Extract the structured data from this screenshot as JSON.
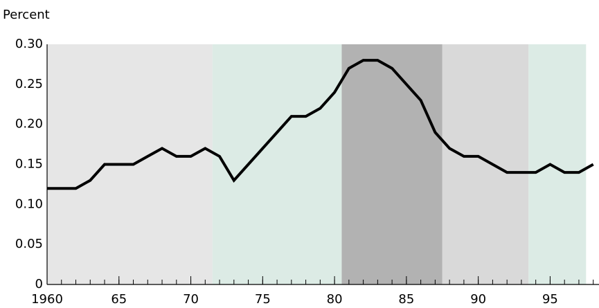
{
  "chart_data": {
    "type": "line",
    "ylabel": "Percent",
    "x": [
      1960,
      1961,
      1962,
      1963,
      1964,
      1965,
      1966,
      1967,
      1968,
      1969,
      1970,
      1971,
      1972,
      1973,
      1974,
      1975,
      1976,
      1977,
      1978,
      1979,
      1980,
      1981,
      1982,
      1983,
      1984,
      1985,
      1986,
      1987,
      1988,
      1989,
      1990,
      1991,
      1992,
      1993,
      1994,
      1995,
      1996,
      1997,
      1998
    ],
    "series": [
      {
        "color": "#000000",
        "values": [
          0.12,
          0.12,
          0.12,
          0.13,
          0.15,
          0.15,
          0.15,
          0.16,
          0.17,
          0.16,
          0.16,
          0.17,
          0.16,
          0.13,
          0.15,
          0.17,
          0.19,
          0.21,
          0.21,
          0.22,
          0.24,
          0.27,
          0.28,
          0.28,
          0.27,
          0.25,
          0.23,
          0.19,
          0.17,
          0.16,
          0.16,
          0.15,
          0.14,
          0.14,
          0.14,
          0.15,
          0.14,
          0.14,
          0.15
        ]
      }
    ],
    "bands": [
      {
        "start": 1960,
        "end": 1971.5,
        "color": "#e6e6e6"
      },
      {
        "start": 1971.5,
        "end": 1980.5,
        "color": "#dcebe5"
      },
      {
        "start": 1980.5,
        "end": 1987.5,
        "color": "#b2b2b2"
      },
      {
        "start": 1987.5,
        "end": 1993.5,
        "color": "#d9d9d9"
      },
      {
        "start": 1993.5,
        "end": 1997.5,
        "color": "#dcebe5"
      }
    ],
    "xlim": [
      1960,
      1998.4
    ],
    "xticks": [
      {
        "value": 1960,
        "label": "1960"
      },
      {
        "value": 1965,
        "label": "65"
      },
      {
        "value": 1970,
        "label": "70"
      },
      {
        "value": 1975,
        "label": "75"
      },
      {
        "value": 1980,
        "label": "80"
      },
      {
        "value": 1985,
        "label": "85"
      },
      {
        "value": 1990,
        "label": "90"
      },
      {
        "value": 1995,
        "label": "95"
      }
    ],
    "ylim": [
      0,
      0.3
    ],
    "yticks": [
      0,
      0.05,
      {
        "value": 0.1,
        "label": "0.10"
      },
      0.15,
      {
        "value": 0.2,
        "label": "0.20"
      },
      0.25,
      {
        "value": 0.3,
        "label": "0.30"
      }
    ],
    "grid": false
  }
}
